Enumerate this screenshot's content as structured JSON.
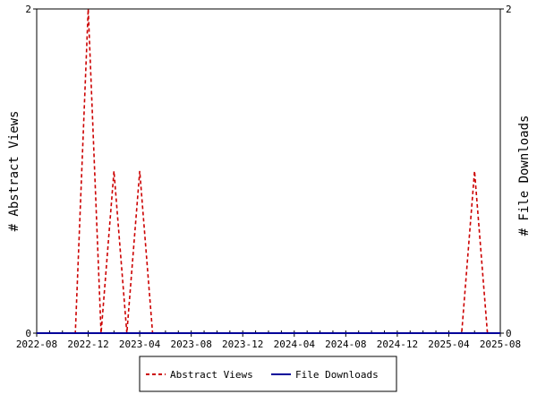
{
  "chart_data": {
    "type": "line",
    "y_left_label": "# Abstract Views",
    "y_right_label": "# File Downloads",
    "y_left_ticks": [
      "0",
      "2"
    ],
    "y_right_ticks": [
      "0",
      "2"
    ],
    "ylim": [
      0,
      2
    ],
    "x_ticks": [
      "2022-08",
      "2022-12",
      "2023-04",
      "2023-08",
      "2023-12",
      "2024-04",
      "2024-08",
      "2024-12",
      "2025-04",
      "2025-08"
    ],
    "series": [
      {
        "name": "Abstract Views",
        "color": "#cc0000",
        "style": "dashed",
        "axis": "left",
        "x": [
          "2022-08",
          "2022-09",
          "2022-10",
          "2022-11",
          "2022-12",
          "2023-01",
          "2023-02",
          "2023-03",
          "2023-04",
          "2023-05",
          "2023-06",
          "2023-07",
          "2023-08",
          "2023-09",
          "2023-10",
          "2023-11",
          "2023-12",
          "2024-01",
          "2024-02",
          "2024-03",
          "2024-04",
          "2024-05",
          "2024-06",
          "2024-07",
          "2024-08",
          "2024-09",
          "2024-10",
          "2024-11",
          "2024-12",
          "2025-01",
          "2025-02",
          "2025-03",
          "2025-04",
          "2025-05",
          "2025-06",
          "2025-07",
          "2025-08"
        ],
        "values": [
          0,
          0,
          0,
          0,
          2,
          0,
          1,
          0,
          1,
          0,
          0,
          0,
          0,
          0,
          0,
          0,
          0,
          0,
          0,
          0,
          0,
          0,
          0,
          0,
          0,
          0,
          0,
          0,
          0,
          0,
          0,
          0,
          0,
          0,
          1,
          0,
          0
        ]
      },
      {
        "name": "File Downloads",
        "color": "#000099",
        "style": "solid",
        "axis": "right",
        "x": [
          "2022-08",
          "2025-08"
        ],
        "values": [
          0,
          0
        ]
      }
    ],
    "legend": [
      "Abstract Views",
      "File Downloads"
    ],
    "legend_position": "bottom"
  }
}
